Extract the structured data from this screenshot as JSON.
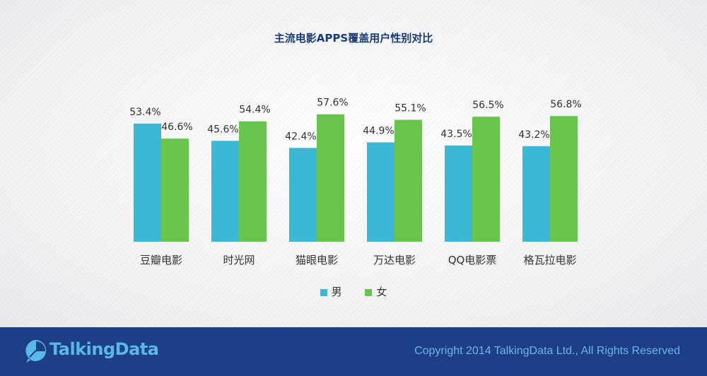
{
  "chart_data": {
    "type": "bar",
    "title": "主流电影APPS覆盖用户性别对比",
    "categories": [
      "豆瓣电影",
      "时光网",
      "猫眼电影",
      "万达电影",
      "QQ电影票",
      "格瓦拉电影"
    ],
    "series": [
      {
        "name": "男",
        "values": [
          53.4,
          45.6,
          42.4,
          44.9,
          43.5,
          43.2
        ],
        "color": "#3bb8d6"
      },
      {
        "name": "女",
        "values": [
          46.6,
          54.4,
          57.6,
          55.1,
          56.5,
          56.8
        ],
        "color": "#69c44e"
      }
    ],
    "value_suffix": "%",
    "ylim": [
      0,
      60
    ],
    "legend_position": "bottom",
    "grid": false
  },
  "legend": {
    "male": "男",
    "female": "女"
  },
  "footer": {
    "logo_text": "TalkingData",
    "copyright": "Copyright 2014 TalkingData Ltd., All Rights Reserved"
  },
  "colors": {
    "footer_bg": "#1c3f87",
    "male": "#3bb8d6",
    "female": "#69c44e"
  }
}
